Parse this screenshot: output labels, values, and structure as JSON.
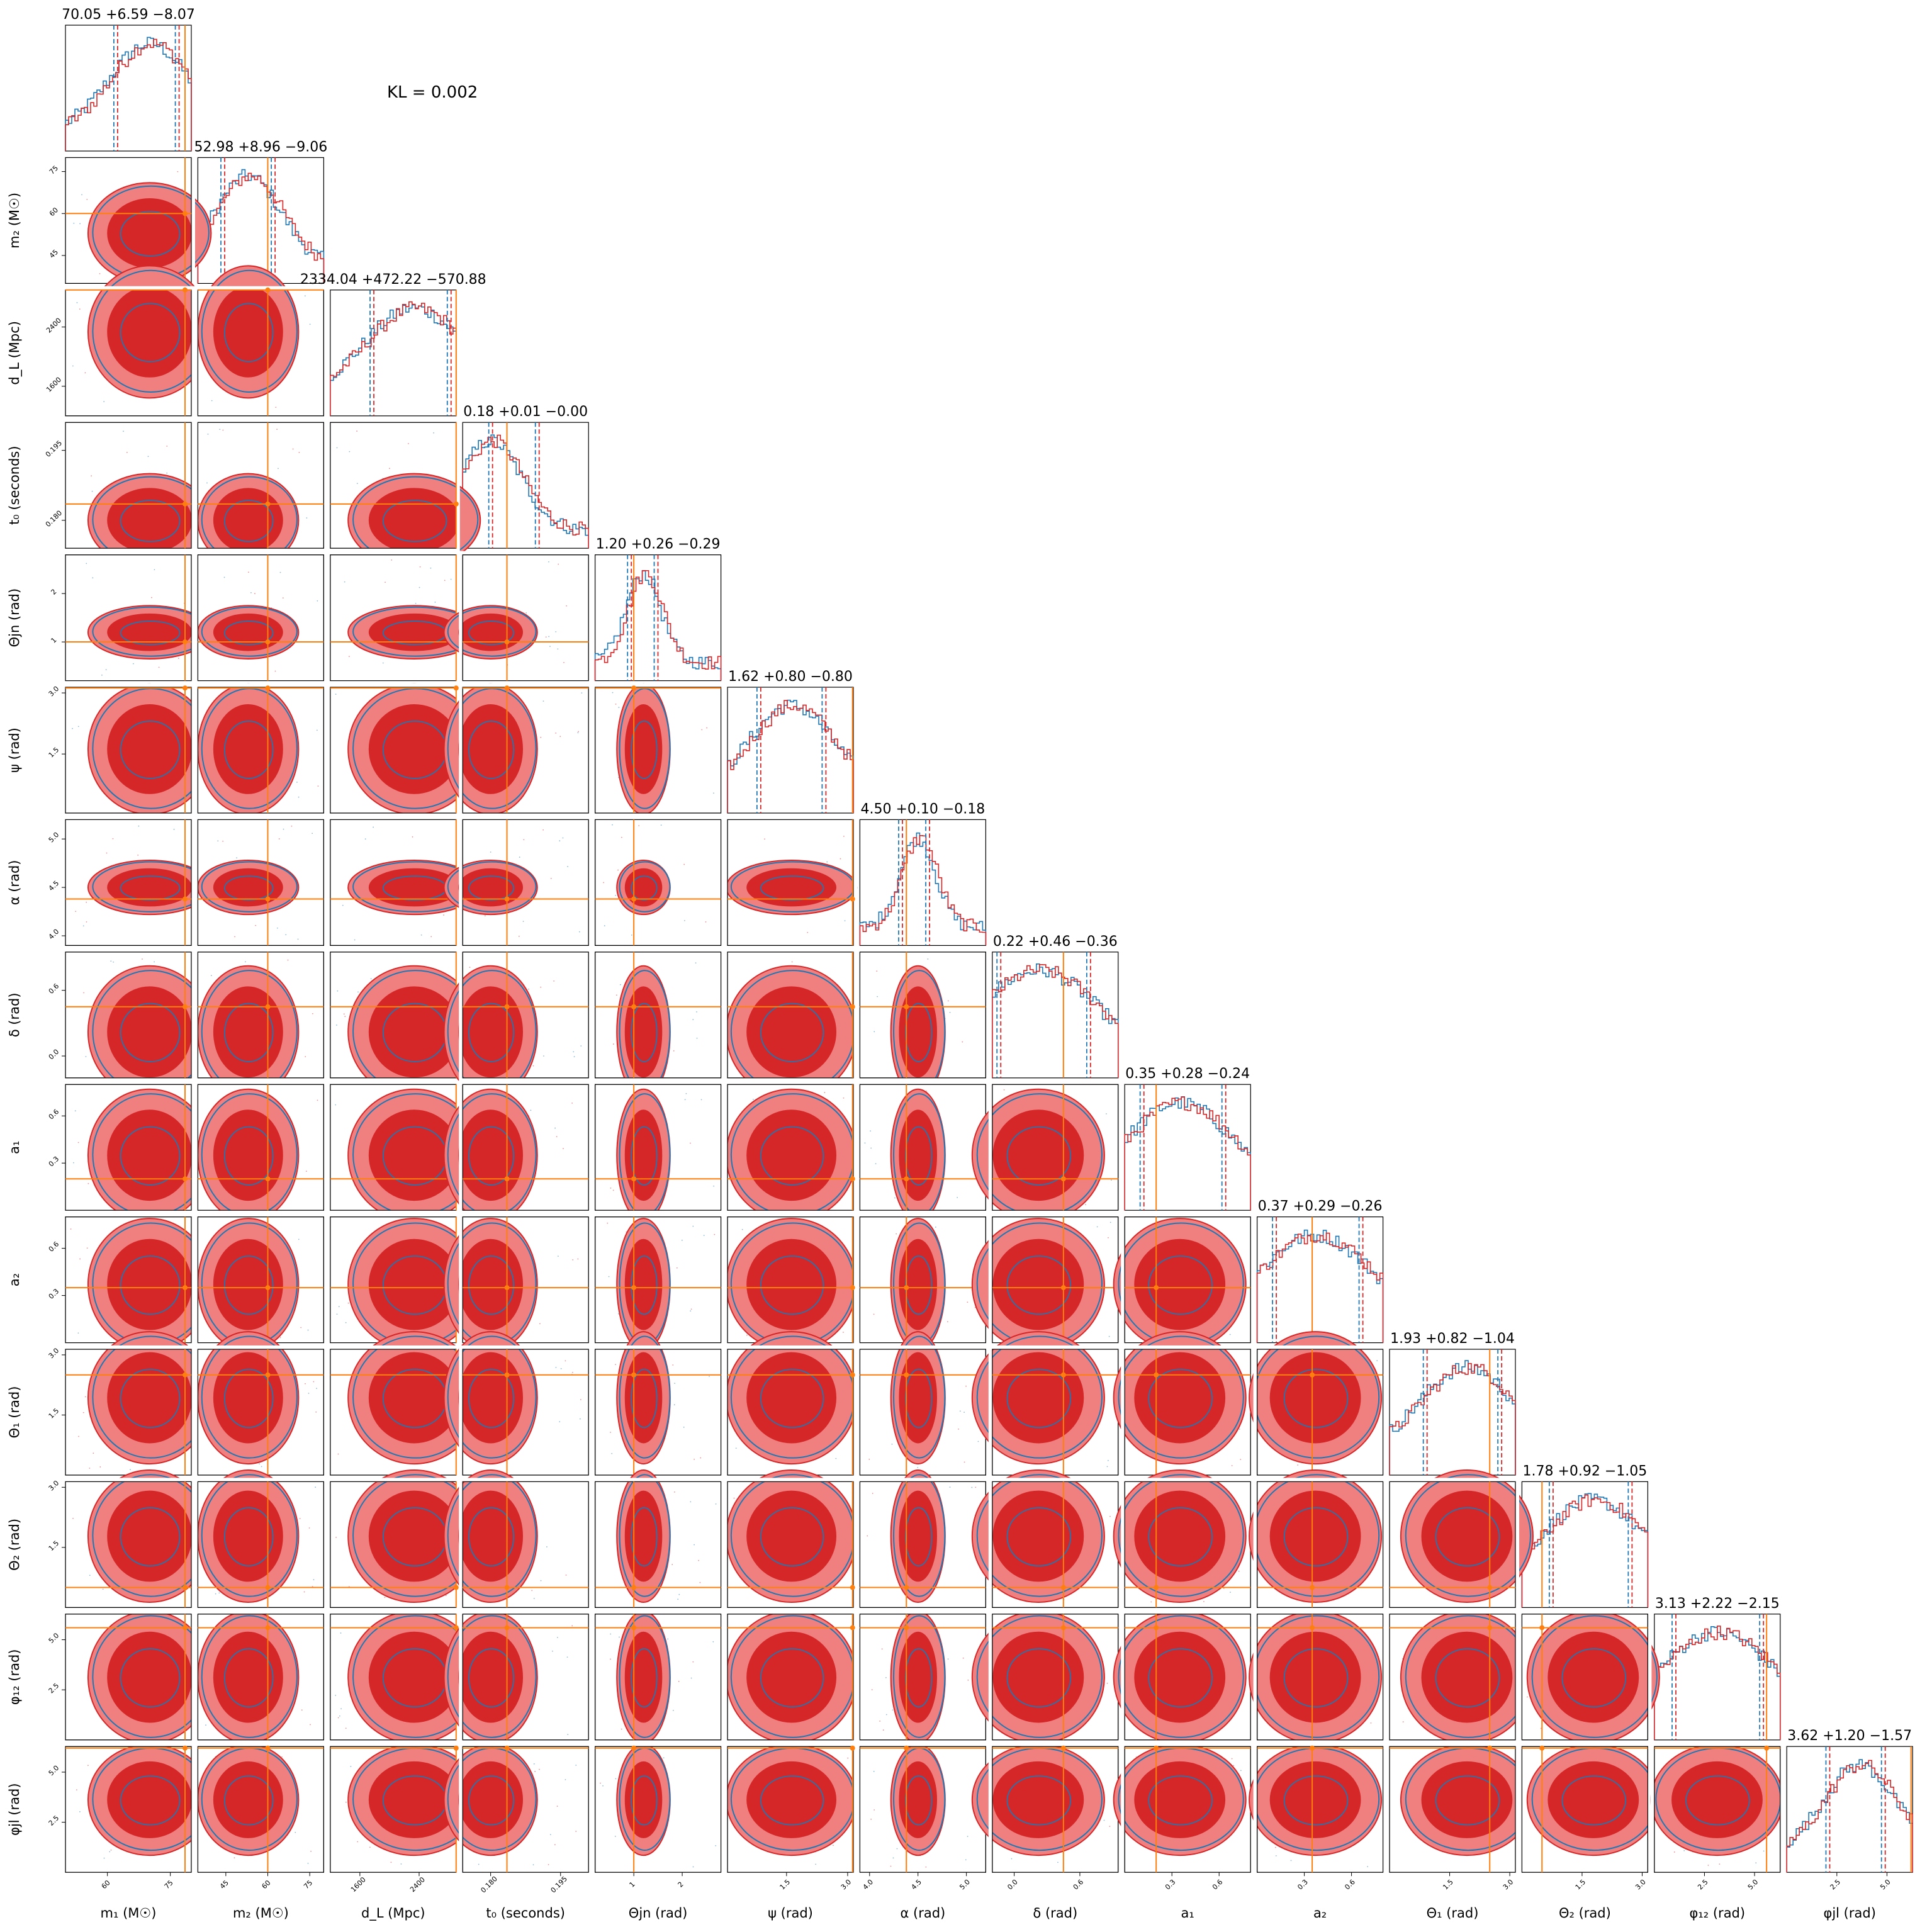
{
  "chart_data": {
    "type": "corner",
    "annotation": "KL = 0.002",
    "colors": {
      "series_a": "#1f77b4",
      "series_b": "#d62728",
      "truth": "#ff7f0e",
      "fill_inner": "#d62728",
      "fill_outer": "#f08080"
    },
    "parameters": [
      {
        "key": "m1",
        "label": "m₁ (M☉)",
        "title": "70.05 +6.59 −8.07",
        "median": 70.05,
        "plus": 6.59,
        "minus": 8.07,
        "truth": 78.5,
        "range": [
          50,
          80
        ],
        "ticks": [
          "60",
          "75"
        ],
        "tick_values": [
          60,
          75
        ]
      },
      {
        "key": "m2",
        "label": "m₂ (M☉)",
        "title": "52.98 +8.96 −9.06",
        "median": 52.98,
        "plus": 8.96,
        "minus": 9.06,
        "truth": 60,
        "range": [
          35,
          80
        ],
        "ticks": [
          "45",
          "60",
          "75"
        ],
        "tick_values": [
          45,
          60,
          75
        ]
      },
      {
        "key": "dL",
        "label": "d_L (Mpc)",
        "title": "2334.04 +472.22 −570.88",
        "median": 2334.04,
        "plus": 472.22,
        "minus": 570.88,
        "truth": 2900,
        "range": [
          1200,
          2900
        ],
        "ticks": [
          "1600",
          "2400"
        ],
        "tick_values": [
          1600,
          2400
        ]
      },
      {
        "key": "t0",
        "label": "t₀ (seconds)",
        "title": "0.18 +0.01 −0.00",
        "median": 0.18,
        "plus": 0.01,
        "minus": 0.0,
        "truth": 0.1835,
        "range": [
          0.174,
          0.201
        ],
        "ticks": [
          "0.180",
          "0.195"
        ],
        "tick_values": [
          0.18,
          0.195
        ]
      },
      {
        "key": "thetajn",
        "label": "Θjn (rad)",
        "title": "1.20 +0.26 −0.29",
        "median": 1.2,
        "plus": 0.26,
        "minus": 0.29,
        "truth": 1.0,
        "range": [
          0.2,
          2.8
        ],
        "ticks": [
          "1",
          "2"
        ],
        "tick_values": [
          1,
          2
        ]
      },
      {
        "key": "psi",
        "label": "ψ (rad)",
        "title": "1.62 +0.80 −0.80",
        "median": 1.62,
        "plus": 0.8,
        "minus": 0.8,
        "truth": 3.12,
        "range": [
          0.05,
          3.14
        ],
        "ticks": [
          "1.5",
          "3.0"
        ],
        "tick_values": [
          1.5,
          3.0
        ]
      },
      {
        "key": "alpha",
        "label": "α (rad)",
        "title": "4.50 +0.10 −0.18",
        "median": 4.5,
        "plus": 0.1,
        "minus": 0.18,
        "truth": 4.38,
        "range": [
          3.9,
          5.2
        ],
        "ticks": [
          "4.0",
          "4.5",
          "5.0"
        ],
        "tick_values": [
          4.0,
          4.5,
          5.0
        ]
      },
      {
        "key": "delta",
        "label": "δ (rad)",
        "title": "0.22 +0.46 −0.36",
        "median": 0.22,
        "plus": 0.46,
        "minus": 0.36,
        "truth": 0.45,
        "range": [
          -0.2,
          0.95
        ],
        "ticks": [
          "0.0",
          "0.6"
        ],
        "tick_values": [
          0.0,
          0.6
        ]
      },
      {
        "key": "a1",
        "label": "a₁",
        "title": "0.35 +0.28 −0.24",
        "median": 0.35,
        "plus": 0.28,
        "minus": 0.24,
        "truth": 0.2,
        "range": [
          0.0,
          0.8
        ],
        "ticks": [
          "0.3",
          "0.6"
        ],
        "tick_values": [
          0.3,
          0.6
        ]
      },
      {
        "key": "a2",
        "label": "a₂",
        "title": "0.37 +0.29 −0.26",
        "median": 0.37,
        "plus": 0.29,
        "minus": 0.26,
        "truth": 0.35,
        "range": [
          0.0,
          0.8
        ],
        "ticks": [
          "0.3",
          "0.6"
        ],
        "tick_values": [
          0.3,
          0.6
        ]
      },
      {
        "key": "theta1",
        "label": "Θ₁ (rad)",
        "title": "1.93 +0.82 −1.04",
        "median": 1.93,
        "plus": 0.82,
        "minus": 1.04,
        "truth": 2.5,
        "range": [
          0.0,
          3.14
        ],
        "ticks": [
          "1.5",
          "3.0"
        ],
        "tick_values": [
          1.5,
          3.0
        ]
      },
      {
        "key": "theta2",
        "label": "Θ₂ (rad)",
        "title": "1.78 +0.92 −1.05",
        "median": 1.78,
        "plus": 0.92,
        "minus": 1.05,
        "truth": 0.5,
        "range": [
          0.0,
          3.14
        ],
        "ticks": [
          "1.5",
          "3.0"
        ],
        "tick_values": [
          1.5,
          3.0
        ]
      },
      {
        "key": "phi12",
        "label": "φ₁₂ (rad)",
        "title": "3.13 +2.22 −2.15",
        "median": 3.13,
        "plus": 2.22,
        "minus": 2.15,
        "truth": 5.6,
        "range": [
          0.0,
          6.28
        ],
        "ticks": [
          "2.5",
          "5.0"
        ],
        "tick_values": [
          2.5,
          5.0
        ]
      },
      {
        "key": "phijl",
        "label": "φjl (rad)",
        "title": "3.62 +1.20 −1.57",
        "median": 3.62,
        "plus": 1.2,
        "minus": 1.57,
        "truth": 6.2,
        "range": [
          0.0,
          6.28
        ],
        "ticks": [
          "2.5",
          "5.0"
        ],
        "tick_values": [
          2.5,
          5.0
        ]
      }
    ]
  }
}
